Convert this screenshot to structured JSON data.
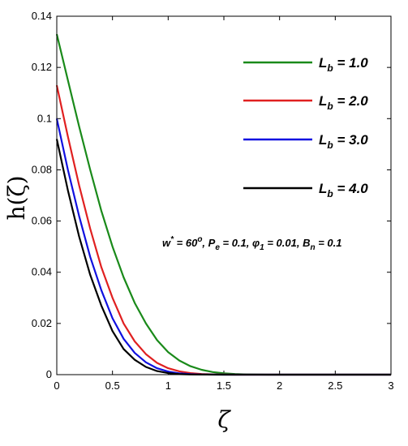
{
  "chart_data": {
    "type": "line",
    "xlabel": "ζ",
    "ylabel": "h(ζ)",
    "xlim": [
      0,
      3
    ],
    "ylim": [
      0,
      0.14
    ],
    "x_ticks": [
      0,
      0.5,
      1,
      1.5,
      2,
      2.5,
      3
    ],
    "y_ticks": [
      0,
      0.02,
      0.04,
      0.06,
      0.08,
      0.1,
      0.12,
      0.14
    ],
    "x_tick_labels": [
      "0",
      "0.5",
      "1",
      "1.5",
      "2",
      "2.5",
      "3"
    ],
    "y_tick_labels": [
      "0",
      "0.02",
      "0.04",
      "0.06",
      "0.08",
      "0.1",
      "0.12",
      "0.14"
    ],
    "grid": false,
    "legend_position": "top-right",
    "annotation": {
      "parts": [
        {
          "t": "w",
          "s": "main"
        },
        {
          "t": "*",
          "s": "sup"
        },
        {
          "t": " = 60",
          "s": "main"
        },
        {
          "t": "o",
          "s": "sup"
        },
        {
          "t": ", P",
          "s": "main"
        },
        {
          "t": "e",
          "s": "sub"
        },
        {
          "t": " = 0.1, ",
          "s": "main"
        },
        {
          "t": "φ",
          "s": "main"
        },
        {
          "t": "1",
          "s": "sub"
        },
        {
          "t": " = 0.01, B",
          "s": "main"
        },
        {
          "t": "n",
          "s": "sub"
        },
        {
          "t": " = 0.1",
          "s": "main"
        }
      ]
    },
    "series": [
      {
        "name": "L_b = 1.0",
        "label_main": "L",
        "label_sub": "b",
        "label_rest": " = 1.0",
        "color": "#1a8a1a",
        "x": [
          0,
          0.1,
          0.2,
          0.3,
          0.4,
          0.5,
          0.6,
          0.7,
          0.8,
          0.9,
          1.0,
          1.1,
          1.2,
          1.3,
          1.4,
          1.5,
          1.6,
          1.7,
          1.8,
          1.9,
          2.0,
          2.5,
          3.0
        ],
        "y": [
          0.133,
          0.115,
          0.097,
          0.08,
          0.064,
          0.05,
          0.038,
          0.028,
          0.02,
          0.0135,
          0.0088,
          0.0055,
          0.0033,
          0.0019,
          0.001,
          0.0005,
          0.00025,
          0.0001,
          4e-05,
          1e-05,
          0,
          0,
          0
        ]
      },
      {
        "name": "L_b = 2.0",
        "label_main": "L",
        "label_sub": "b",
        "label_rest": " = 2.0",
        "color": "#e02020",
        "x": [
          0,
          0.1,
          0.2,
          0.3,
          0.4,
          0.5,
          0.6,
          0.7,
          0.8,
          0.9,
          1.0,
          1.1,
          1.2,
          1.3,
          1.4,
          1.5,
          1.6,
          2.0,
          2.5,
          3.0
        ],
        "y": [
          0.113,
          0.093,
          0.074,
          0.057,
          0.042,
          0.03,
          0.02,
          0.013,
          0.008,
          0.0046,
          0.0025,
          0.0013,
          0.0006,
          0.00025,
          0.0001,
          3e-05,
          0,
          0,
          0,
          0
        ]
      },
      {
        "name": "L_b = 3.0",
        "label_main": "L",
        "label_sub": "b",
        "label_rest": " = 3.0",
        "color": "#1010e0",
        "x": [
          0,
          0.1,
          0.2,
          0.3,
          0.4,
          0.5,
          0.6,
          0.7,
          0.8,
          0.9,
          1.0,
          1.1,
          1.2,
          1.3,
          1.5,
          2.0,
          2.5,
          3.0
        ],
        "y": [
          0.1,
          0.08,
          0.062,
          0.046,
          0.033,
          0.022,
          0.014,
          0.0085,
          0.0048,
          0.0025,
          0.0012,
          0.0005,
          0.0002,
          5e-05,
          0,
          0,
          0,
          0
        ]
      },
      {
        "name": "L_b = 4.0",
        "label_main": "L",
        "label_sub": "b",
        "label_rest": " = 4.0",
        "color": "#000000",
        "x": [
          0,
          0.1,
          0.2,
          0.3,
          0.4,
          0.5,
          0.6,
          0.7,
          0.8,
          0.9,
          1.0,
          1.1,
          1.2,
          1.5,
          2.0,
          2.5,
          3.0
        ],
        "y": [
          0.092,
          0.072,
          0.054,
          0.039,
          0.027,
          0.017,
          0.01,
          0.0058,
          0.003,
          0.0014,
          0.0006,
          0.0002,
          5e-05,
          0,
          0,
          0,
          0
        ]
      }
    ]
  }
}
